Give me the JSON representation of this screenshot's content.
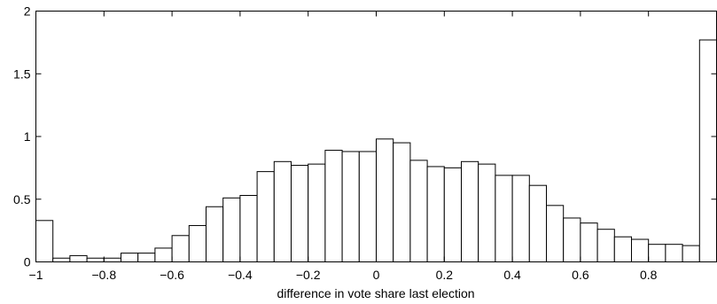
{
  "chart_data": {
    "type": "bar",
    "title": "",
    "xlabel": "difference in vote share last election",
    "ylabel": "",
    "xlim": [
      -1,
      1
    ],
    "ylim": [
      0,
      2
    ],
    "grid": false,
    "bin_width": 0.05,
    "bin_starts": [
      -1.0,
      -0.95,
      -0.9,
      -0.85,
      -0.8,
      -0.75,
      -0.7,
      -0.65,
      -0.6,
      -0.55,
      -0.5,
      -0.45,
      -0.4,
      -0.35,
      -0.3,
      -0.25,
      -0.2,
      -0.15,
      -0.1,
      -0.05,
      0.0,
      0.05,
      0.1,
      0.15,
      0.2,
      0.25,
      0.3,
      0.35,
      0.4,
      0.45,
      0.5,
      0.55,
      0.6,
      0.65,
      0.7,
      0.75,
      0.8,
      0.85,
      0.9,
      0.95
    ],
    "values": [
      0.33,
      0.03,
      0.05,
      0.03,
      0.03,
      0.07,
      0.07,
      0.11,
      0.21,
      0.29,
      0.44,
      0.51,
      0.53,
      0.72,
      0.8,
      0.77,
      0.78,
      0.89,
      0.88,
      0.88,
      0.98,
      0.95,
      0.81,
      0.76,
      0.75,
      0.8,
      0.78,
      0.69,
      0.69,
      0.61,
      0.45,
      0.35,
      0.31,
      0.26,
      0.2,
      0.18,
      0.14,
      0.14,
      0.13,
      1.77
    ],
    "x_ticks": [
      -1,
      -0.8,
      -0.6,
      -0.4,
      -0.2,
      0,
      0.2,
      0.4,
      0.6,
      0.8
    ],
    "x_tick_labels": [
      "−1",
      "−0.8",
      "−0.6",
      "−0.4",
      "−0.2",
      "0",
      "0.2",
      "0.4",
      "0.6",
      "0.8"
    ],
    "y_ticks": [
      0,
      0.5,
      1,
      1.5,
      2
    ],
    "y_tick_labels": [
      "0",
      "0.5",
      "1",
      "1.5",
      "2"
    ]
  }
}
